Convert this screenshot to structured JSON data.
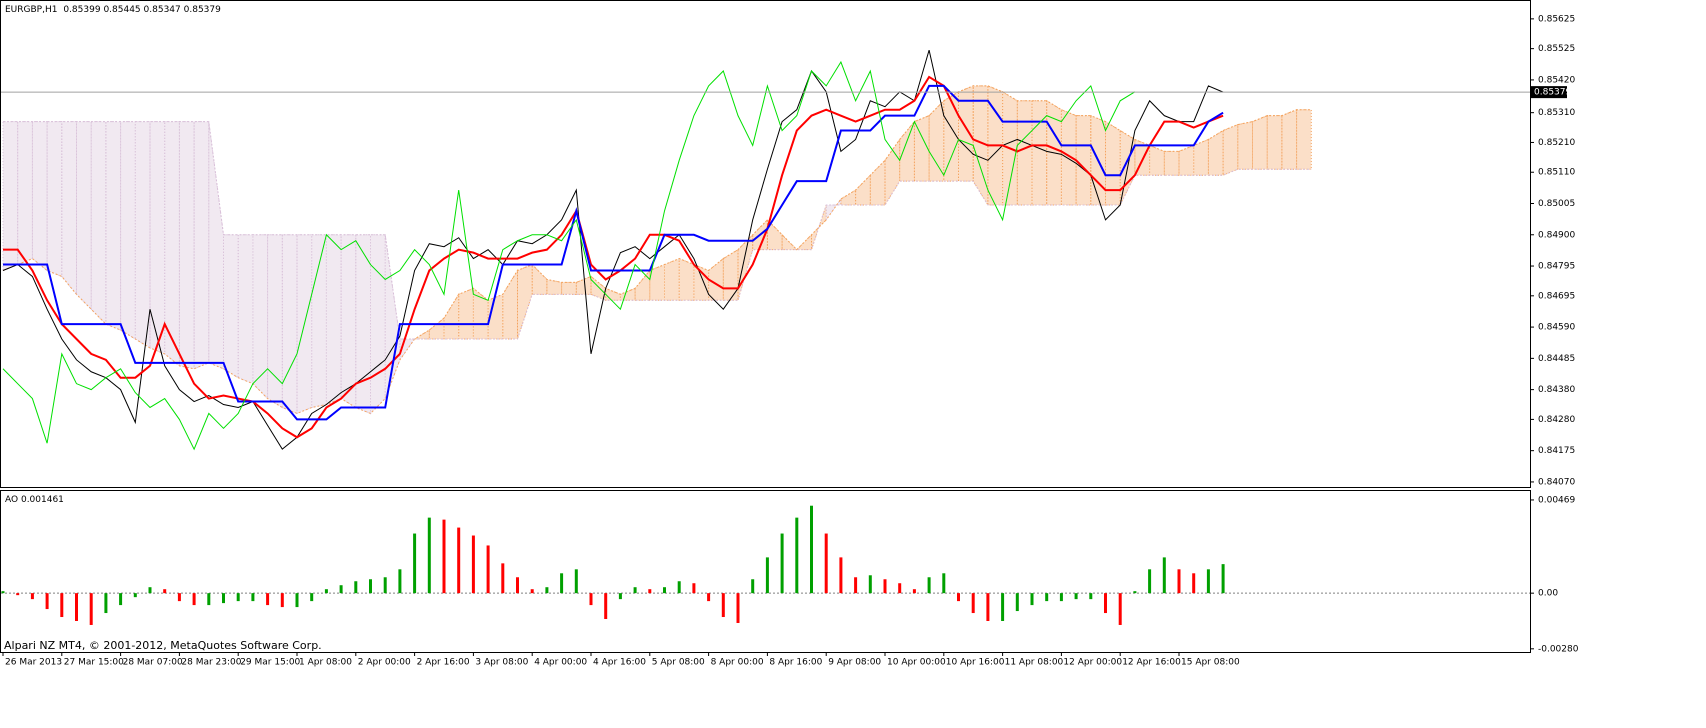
{
  "chart_data": [
    {
      "type": "line",
      "symbol": "EURGBP,H1",
      "ohlc": [
        0.85399,
        0.85445,
        0.85347,
        0.85379
      ],
      "last_price": 0.85379,
      "last_price_color": "#000000",
      "watermark": "Alpari NZ MT4, © 2001-2012, MetaQuotes Software Corp.",
      "categories": [
        "26 Mar 2013",
        null,
        null,
        null,
        "27 Mar 15:00",
        null,
        null,
        null,
        "28 Mar 07:00",
        null,
        null,
        null,
        "28 Mar 23:00",
        null,
        null,
        null,
        "29 Mar 15:00",
        null,
        null,
        null,
        "1 Apr 08:00",
        null,
        null,
        null,
        "2 Apr 00:00",
        null,
        null,
        null,
        "2 Apr 16:00",
        null,
        null,
        null,
        "3 Apr 08:00",
        null,
        null,
        null,
        "4 Apr 00:00",
        null,
        null,
        null,
        "4 Apr 16:00",
        null,
        null,
        null,
        "5 Apr 08:00",
        null,
        null,
        null,
        "8 Apr 00:00",
        null,
        null,
        null,
        "8 Apr 16:00",
        null,
        null,
        null,
        "9 Apr 08:00",
        null,
        null,
        null,
        "10 Apr 00:00",
        null,
        null,
        null,
        "10 Apr 16:00",
        null,
        null,
        null,
        "11 Apr 08:00",
        null,
        null,
        null,
        "12 Apr 00:00",
        null,
        null,
        null,
        "12 Apr 16:00",
        null,
        null,
        null,
        "15 Apr 08:00",
        null,
        null,
        null,
        null,
        null,
        null,
        null,
        null,
        null
      ],
      "ylim": [
        0.84053,
        0.85685
      ],
      "yticks": [
        0.85625,
        0.85525,
        {
          "value": 0.8542,
          "label": "0.85420"
        },
        {
          "value": 0.8531,
          "label": "0.85310"
        },
        {
          "value": 0.8521,
          "label": "0.85210"
        },
        {
          "value": 0.8511,
          "label": "0.85110"
        },
        0.85005,
        {
          "value": 0.849,
          "label": "0.84900"
        },
        0.84795,
        0.84695,
        {
          "value": 0.8459,
          "label": "0.84590"
        },
        0.84485,
        {
          "value": 0.8438,
          "label": "0.84380"
        },
        {
          "value": 0.8428,
          "label": "0.84280"
        },
        0.84175,
        {
          "value": 0.8407,
          "label": "0.84070"
        }
      ],
      "cloud": {
        "up_color": "#f4a460",
        "down_color": "#d8bfd8",
        "span_a": [
          0.8478,
          0.848,
          0.8482,
          0.8478,
          0.8476,
          0.847,
          0.8465,
          0.846,
          0.8458,
          0.8455,
          0.8452,
          0.845,
          0.8446,
          0.8445,
          0.8447,
          0.8445,
          0.8442,
          0.844,
          0.8435,
          0.8432,
          0.843,
          0.8432,
          0.8433,
          0.8435,
          0.8432,
          0.843,
          0.8435,
          0.8448,
          0.8455,
          0.8458,
          0.8462,
          0.847,
          0.8472,
          0.8468,
          0.847,
          0.8478,
          0.848,
          0.8475,
          0.8474,
          0.8474,
          0.8476,
          0.8472,
          0.847,
          0.8472,
          0.8478,
          0.848,
          0.8482,
          0.848,
          0.8478,
          0.8482,
          0.8485,
          0.849,
          0.8495,
          0.849,
          0.8485,
          0.849,
          0.8495,
          0.8502,
          0.8505,
          0.851,
          0.8515,
          0.8522,
          0.8528,
          0.853,
          0.8535,
          0.8538,
          0.854,
          0.854,
          0.8538,
          0.8535,
          0.8535,
          0.8535,
          0.8532,
          0.853,
          0.853,
          0.8528,
          0.8525,
          0.8522,
          0.852,
          0.8518,
          0.8518,
          0.852,
          0.8522,
          0.8525,
          0.8527,
          0.8528,
          0.853,
          0.853,
          0.8532,
          0.8532
        ],
        "span_b": [
          0.8528,
          0.8528,
          0.8528,
          0.8528,
          0.8528,
          0.8528,
          0.8528,
          0.8528,
          0.8528,
          0.8528,
          0.8528,
          0.8528,
          0.8528,
          0.8528,
          0.8528,
          0.849,
          0.849,
          0.849,
          0.849,
          0.849,
          0.849,
          0.849,
          0.849,
          0.849,
          0.849,
          0.849,
          0.849,
          0.8455,
          0.8455,
          0.8455,
          0.8455,
          0.8455,
          0.8455,
          0.8455,
          0.8455,
          0.8455,
          0.847,
          0.847,
          0.847,
          0.847,
          0.847,
          0.8468,
          0.8468,
          0.8468,
          0.8468,
          0.8468,
          0.8468,
          0.8468,
          0.8468,
          0.8468,
          0.8468,
          0.8485,
          0.8485,
          0.8485,
          0.8485,
          0.8485,
          0.85,
          0.85,
          0.85,
          0.85,
          0.85,
          0.8508,
          0.8508,
          0.8508,
          0.8508,
          0.8508,
          0.8508,
          0.85,
          0.85,
          0.85,
          0.85,
          0.85,
          0.85,
          0.85,
          0.85,
          0.85,
          0.85,
          0.851,
          0.851,
          0.851,
          0.851,
          0.851,
          0.851,
          0.851,
          0.8512,
          0.8512,
          0.8512,
          0.8512,
          0.8512,
          0.8512
        ]
      },
      "series": [
        {
          "color": "#000000",
          "values": [
            0.8478,
            0.848,
            0.8476,
            0.8465,
            0.8455,
            0.8448,
            0.8444,
            0.8442,
            0.8438,
            0.8427,
            0.8465,
            0.8446,
            0.8438,
            0.8434,
            0.8436,
            0.8433,
            0.8432,
            0.8434,
            0.8426,
            0.8418,
            0.8422,
            0.843,
            0.8433,
            0.8437,
            0.844,
            0.8444,
            0.8448,
            0.8456,
            0.8478,
            0.8487,
            0.8486,
            0.8489,
            0.8482,
            0.8485,
            0.848,
            0.8488,
            0.8487,
            0.849,
            0.8495,
            0.8505,
            0.845,
            0.8472,
            0.8484,
            0.8486,
            0.8482,
            0.8486,
            0.849,
            0.8482,
            0.847,
            0.8465,
            0.8472,
            0.8495,
            0.8512,
            0.8528,
            0.8532,
            0.8545,
            0.8538,
            0.8518,
            0.8522,
            0.8535,
            0.8533,
            0.8538,
            0.8535,
            0.8552,
            0.853,
            0.8522,
            0.8517,
            0.8515,
            0.852,
            0.8522,
            0.852,
            0.8518,
            0.8517,
            0.8514,
            0.851,
            0.8495,
            0.85,
            0.8525,
            0.8535,
            0.853,
            0.8528,
            0.8528,
            0.854,
            0.85379,
            null,
            null,
            null,
            null,
            null,
            null
          ]
        },
        {
          "color": "#ff0000",
          "values": [
            0.8485,
            0.8485,
            0.8478,
            0.8468,
            0.846,
            0.8455,
            0.845,
            0.8448,
            0.8442,
            0.8442,
            0.8446,
            0.846,
            0.845,
            0.844,
            0.8435,
            0.8436,
            0.8435,
            0.8434,
            0.843,
            0.8425,
            0.8422,
            0.8425,
            0.8432,
            0.8435,
            0.844,
            0.8442,
            0.8445,
            0.845,
            0.8465,
            0.8478,
            0.8482,
            0.8485,
            0.8484,
            0.8482,
            0.8482,
            0.8482,
            0.8484,
            0.8485,
            0.849,
            0.8498,
            0.848,
            0.8475,
            0.8478,
            0.8482,
            0.849,
            0.849,
            0.8488,
            0.848,
            0.8475,
            0.8472,
            0.8472,
            0.848,
            0.8492,
            0.851,
            0.8525,
            0.853,
            0.8532,
            0.853,
            0.8528,
            0.853,
            0.8532,
            0.8532,
            0.8535,
            0.8543,
            0.854,
            0.853,
            0.8522,
            0.852,
            0.852,
            0.8518,
            0.852,
            0.852,
            0.8518,
            0.8515,
            0.851,
            0.8505,
            0.8505,
            0.851,
            0.852,
            0.8528,
            0.8528,
            0.8526,
            0.8528,
            0.853,
            null,
            null,
            null,
            null,
            null,
            null
          ]
        },
        {
          "color": "#0000ff",
          "values": [
            0.848,
            0.848,
            0.848,
            0.848,
            0.846,
            0.846,
            0.846,
            0.846,
            0.846,
            0.8447,
            0.8447,
            0.8447,
            0.8447,
            0.8447,
            0.8447,
            0.8447,
            0.8434,
            0.8434,
            0.8434,
            0.8434,
            0.8428,
            0.8428,
            0.8428,
            0.8432,
            0.8432,
            0.8432,
            0.8432,
            0.846,
            0.846,
            0.846,
            0.846,
            0.846,
            0.846,
            0.846,
            0.848,
            0.848,
            0.848,
            0.848,
            0.848,
            0.8498,
            0.8478,
            0.8478,
            0.8478,
            0.8478,
            0.8478,
            0.849,
            0.849,
            0.849,
            0.8488,
            0.8488,
            0.8488,
            0.8488,
            0.8492,
            0.85,
            0.8508,
            0.8508,
            0.8508,
            0.8525,
            0.8525,
            0.8525,
            0.853,
            0.853,
            0.853,
            0.854,
            0.854,
            0.8535,
            0.8535,
            0.8535,
            0.8528,
            0.8528,
            0.8528,
            0.8528,
            0.852,
            0.852,
            0.852,
            0.851,
            0.851,
            0.852,
            0.852,
            0.852,
            0.852,
            0.852,
            0.8528,
            0.8531,
            null,
            null,
            null,
            null,
            null,
            null
          ]
        },
        {
          "color": "#00e000",
          "values": [
            0.8445,
            0.844,
            0.8435,
            0.842,
            0.845,
            0.844,
            0.8438,
            0.8442,
            0.8445,
            0.8437,
            0.8432,
            0.8435,
            0.8428,
            0.8418,
            0.843,
            0.8425,
            0.843,
            0.844,
            0.8445,
            0.844,
            0.845,
            0.847,
            0.849,
            0.8485,
            0.8488,
            0.848,
            0.8475,
            0.8478,
            0.8485,
            0.848,
            0.847,
            0.8505,
            0.847,
            0.8468,
            0.8485,
            0.8488,
            0.849,
            0.849,
            0.8488,
            0.8495,
            0.8475,
            0.847,
            0.8465,
            0.848,
            0.8475,
            0.8498,
            0.8515,
            0.853,
            0.854,
            0.8545,
            0.853,
            0.852,
            0.854,
            0.8525,
            0.853,
            0.8545,
            0.854,
            0.8548,
            0.8535,
            0.8545,
            0.8522,
            0.8515,
            0.8528,
            0.8518,
            0.851,
            0.8522,
            0.852,
            0.8505,
            0.8495,
            0.852,
            0.8525,
            0.853,
            0.8528,
            0.8535,
            0.854,
            0.8525,
            0.8535,
            0.8538,
            null,
            null,
            null,
            null,
            null,
            null,
            null,
            null,
            null,
            null,
            null,
            null
          ]
        }
      ]
    },
    {
      "type": "bar",
      "title": "AO",
      "current": 0.001461,
      "up_color": "#00a000",
      "down_color": "#ff0000",
      "ylim": [
        -0.00296,
        0.00514
      ],
      "yticks": [
        0.00469,
        {
          "value": 0,
          "label": "0.00"
        },
        {
          "value": -0.0028,
          "label": "-0.00280"
        }
      ],
      "values": [
        0.0001,
        -0.0001,
        -0.0003,
        -0.0008,
        -0.0012,
        -0.0014,
        -0.0016,
        -0.001,
        -0.0006,
        -0.0002,
        0.0003,
        0.0002,
        -0.0004,
        -0.0006,
        -0.0006,
        -0.0005,
        -0.0004,
        -0.0004,
        -0.0006,
        -0.0007,
        -0.0007,
        -0.0004,
        0.0002,
        0.0004,
        0.0006,
        0.0007,
        0.0008,
        0.0012,
        0.003,
        0.0038,
        0.0037,
        0.0033,
        0.0029,
        0.0024,
        0.0015,
        0.0008,
        0.0002,
        0.0003,
        0.001,
        0.0012,
        -0.0006,
        -0.0013,
        -0.0003,
        0.0003,
        0.0002,
        0.0003,
        0.0006,
        0.0005,
        -0.0004,
        -0.0012,
        -0.0015,
        0.0007,
        0.0018,
        0.003,
        0.0038,
        0.0044,
        0.003,
        0.0018,
        0.0008,
        0.0009,
        0.0007,
        0.0005,
        0.0002,
        0.0008,
        0.001,
        -0.0004,
        -0.001,
        -0.0014,
        -0.0014,
        -0.0009,
        -0.0006,
        -0.0004,
        -0.0004,
        -0.0003,
        -0.0003,
        -0.001,
        -0.0016,
        0.0001,
        0.0012,
        0.0018,
        0.0012,
        0.001,
        0.0012,
        0.001461,
        null,
        null,
        null,
        null,
        null,
        null
      ]
    }
  ]
}
